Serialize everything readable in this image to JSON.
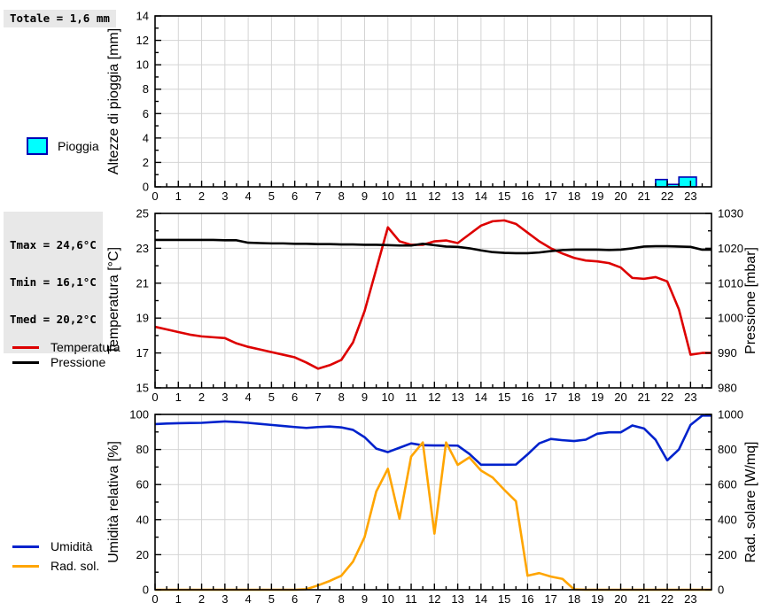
{
  "colors": {
    "rain_fill": "#00ffff",
    "rain_border": "#0000b4",
    "temperature": "#dd0000",
    "pressure": "#000000",
    "humidity": "#0022cc",
    "solar": "#ffa500",
    "grid": "#d4d4d4",
    "axis": "#000000",
    "stats_bg": "#e8e8e8"
  },
  "rain_total": {
    "label": "Totale = 1,6 mm"
  },
  "stats": {
    "tmax": "Tmax = 24,6°C",
    "tmin": "Tmin = 16,1°C",
    "tmed": "Tmed = 20,2°C"
  },
  "legends": {
    "rain": "Pioggia",
    "temperature": "Temperatura",
    "pressure": "Pressione",
    "humidity": "Umidità",
    "solar": "Rad. sol."
  },
  "chart_data": [
    {
      "type": "bar",
      "title": "",
      "ylabel_left": "Altezze di pioggia [mm]",
      "xlim": [
        0,
        23.9
      ],
      "ylim_left": [
        0,
        14
      ],
      "yticks_left": [
        0,
        2,
        4,
        6,
        8,
        10,
        12,
        14
      ],
      "y_minor_left": 1,
      "xticks": [
        0,
        1,
        2,
        3,
        4,
        5,
        6,
        7,
        8,
        9,
        10,
        11,
        12,
        13,
        14,
        15,
        16,
        17,
        18,
        19,
        20,
        21,
        22,
        23
      ],
      "x_minor": 0.5,
      "grid": true,
      "total_mm": 1.6,
      "bars": [
        {
          "x_start": 21.5,
          "x_end": 22.0,
          "value": 0.6
        },
        {
          "x_start": 22.0,
          "x_end": 22.5,
          "value": 0.2
        },
        {
          "x_start": 22.5,
          "x_end": 23.25,
          "value": 0.8
        }
      ]
    },
    {
      "type": "line",
      "title": "",
      "ylabel_left": "Temperatura [°C]",
      "ylabel_right": "Pressione [mbar]",
      "xlim": [
        0,
        23.9
      ],
      "ylim_left": [
        15,
        25
      ],
      "yticks_left": [
        15,
        17,
        19,
        21,
        23,
        25
      ],
      "y_minor_left": 1,
      "ylim_right": [
        980,
        1030
      ],
      "yticks_right": [
        980,
        990,
        1000,
        1010,
        1020,
        1030
      ],
      "y_minor_right": 5,
      "xticks": [
        0,
        1,
        2,
        3,
        4,
        5,
        6,
        7,
        8,
        9,
        10,
        11,
        12,
        13,
        14,
        15,
        16,
        17,
        18,
        19,
        20,
        21,
        22,
        23
      ],
      "x_minor": 0.5,
      "grid": true,
      "x": [
        0,
        0.5,
        1,
        1.5,
        2,
        2.5,
        3,
        3.5,
        4,
        4.5,
        5,
        5.5,
        6,
        6.5,
        7,
        7.5,
        8,
        8.5,
        9,
        9.5,
        10,
        10.5,
        11,
        11.5,
        12,
        12.5,
        13,
        13.5,
        14,
        14.5,
        15,
        15.5,
        16,
        16.5,
        17,
        17.5,
        18,
        18.5,
        19,
        19.5,
        20,
        20.5,
        21,
        21.5,
        22,
        22.5,
        23,
        23.5
      ],
      "series": [
        {
          "name": "Temperatura",
          "axis": "left",
          "color_key": "temperature",
          "values": [
            18.5,
            18.35,
            18.2,
            18.05,
            17.95,
            17.9,
            17.85,
            17.55,
            17.35,
            17.2,
            17.05,
            16.9,
            16.75,
            16.45,
            16.1,
            16.3,
            16.6,
            17.6,
            19.4,
            21.8,
            24.2,
            23.4,
            23.2,
            23.2,
            23.4,
            23.45,
            23.3,
            23.8,
            24.3,
            24.55,
            24.6,
            24.4,
            23.9,
            23.4,
            23.0,
            22.7,
            22.45,
            22.3,
            22.25,
            22.15,
            21.9,
            21.3,
            21.25,
            21.35,
            21.1,
            19.5,
            16.9,
            17.0
          ]
        },
        {
          "name": "Pressione",
          "axis": "right",
          "color_key": "pressure",
          "values": [
            1022.4,
            1022.4,
            1022.4,
            1022.4,
            1022.4,
            1022.4,
            1022.3,
            1022.3,
            1021.6,
            1021.5,
            1021.4,
            1021.4,
            1021.3,
            1021.3,
            1021.2,
            1021.2,
            1021.1,
            1021.1,
            1021.0,
            1021.0,
            1020.9,
            1020.8,
            1020.8,
            1021.3,
            1020.9,
            1020.5,
            1020.4,
            1020.0,
            1019.4,
            1018.9,
            1018.7,
            1018.6,
            1018.6,
            1018.8,
            1019.2,
            1019.5,
            1019.6,
            1019.6,
            1019.6,
            1019.5,
            1019.6,
            1020.0,
            1020.5,
            1020.6,
            1020.6,
            1020.5,
            1020.4,
            1019.6
          ]
        }
      ]
    },
    {
      "type": "line",
      "title": "",
      "ylabel_left": "Umidità relativa [%]",
      "ylabel_right": "Rad. solare [W/mq]",
      "xlim": [
        0,
        23.9
      ],
      "ylim_left": [
        0,
        100
      ],
      "yticks_left": [
        0,
        20,
        40,
        60,
        80,
        100
      ],
      "y_minor_left": 10,
      "ylim_right": [
        0,
        1000
      ],
      "yticks_right": [
        0,
        200,
        400,
        600,
        800,
        1000
      ],
      "y_minor_right": 100,
      "xticks": [
        0,
        1,
        2,
        3,
        4,
        5,
        6,
        7,
        8,
        9,
        10,
        11,
        12,
        13,
        14,
        15,
        16,
        17,
        18,
        19,
        20,
        21,
        22,
        23
      ],
      "x_minor": 0.5,
      "grid": true,
      "x": [
        0,
        0.5,
        1,
        1.5,
        2,
        2.5,
        3,
        3.5,
        4,
        4.5,
        5,
        5.5,
        6,
        6.5,
        7,
        7.5,
        8,
        8.5,
        9,
        9.5,
        10,
        10.5,
        11,
        11.5,
        12,
        12.5,
        13,
        13.5,
        14,
        14.5,
        15,
        15.5,
        16,
        16.5,
        17,
        17.5,
        18,
        18.5,
        19,
        19.5,
        20,
        20.5,
        21,
        21.5,
        22,
        22.5,
        23,
        23.5
      ],
      "series": [
        {
          "name": "Umidità",
          "axis": "left",
          "color_key": "humidity",
          "values": [
            94.5,
            94.8,
            95.0,
            95.1,
            95.2,
            95.6,
            96.0,
            95.7,
            95.2,
            94.6,
            94.0,
            93.4,
            92.8,
            92.3,
            92.8,
            93.1,
            92.6,
            91.2,
            87.0,
            80.5,
            78.5,
            81.0,
            83.5,
            82.4,
            82.3,
            82.3,
            82.2,
            77.5,
            71.3,
            71.3,
            71.3,
            71.4,
            77.2,
            83.5,
            86.0,
            85.3,
            84.8,
            85.6,
            89.0,
            89.8,
            89.8,
            93.7,
            92.0,
            85.5,
            73.8,
            80.0,
            94.0,
            99.3
          ]
        },
        {
          "name": "Rad. sol.",
          "axis": "right",
          "color_key": "solar",
          "values": [
            0,
            0,
            0,
            0,
            0,
            0,
            0,
            0,
            0,
            0,
            0,
            0,
            0,
            3,
            25,
            50,
            80,
            160,
            300,
            560,
            690,
            405,
            760,
            840,
            320,
            840,
            712,
            755,
            680,
            640,
            570,
            505,
            80,
            95,
            75,
            62,
            2,
            0,
            0,
            0,
            0,
            0,
            0,
            0,
            0,
            0,
            0,
            0
          ]
        }
      ]
    }
  ]
}
